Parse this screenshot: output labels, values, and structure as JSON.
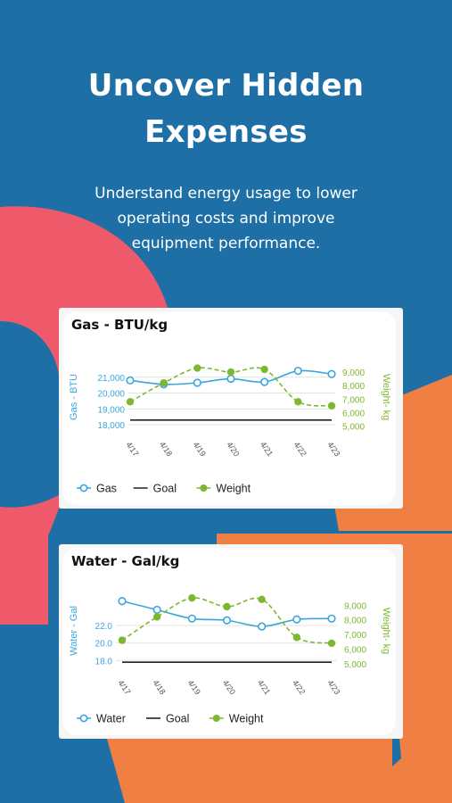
{
  "header": {
    "title_line1": "Uncover Hidden",
    "title_line2": "Expenses",
    "subtitle_line1": "Understand energy usage to lower",
    "subtitle_line2": "operating costs and improve",
    "subtitle_line3": "equipment performance."
  },
  "colors": {
    "background": "#1e6fa6",
    "accent_red": "#ef5a6b",
    "accent_orange": "#ef7f43",
    "series_primary": "#3aa6dd",
    "series_weight": "#7cb82f",
    "goal": "#222222"
  },
  "chart_data": [
    {
      "type": "line",
      "title": "Gas - BTU/kg",
      "categories": [
        "4/17",
        "4/18",
        "4/19",
        "4/20",
        "4/21",
        "4/22",
        "4/23"
      ],
      "series": [
        {
          "name": "Gas",
          "axis": "left",
          "values": [
            20800,
            20550,
            20650,
            20900,
            20700,
            21400,
            21200
          ]
        },
        {
          "name": "Goal",
          "axis": "left",
          "values": [
            18300,
            18300,
            18300,
            18300,
            18300,
            18300,
            18300
          ]
        },
        {
          "name": "Weight",
          "axis": "right",
          "values": [
            6800,
            8200,
            9300,
            9000,
            9200,
            6800,
            6500
          ]
        }
      ],
      "ylabel": "Gas - BTU",
      "y2label": "Weight- kg",
      "ylim": [
        17500,
        22000
      ],
      "y2lim": [
        4500,
        9800
      ],
      "yticks": [
        18000,
        19000,
        20000,
        21000
      ],
      "ytick_labels": [
        "18,000",
        "19,000",
        "20,000",
        "21,000"
      ],
      "y2ticks": [
        5000,
        6000,
        7000,
        8000,
        9000
      ],
      "y2tick_labels": [
        "5,000",
        "6,000",
        "7,000",
        "8,000",
        "9,000"
      ],
      "legend": [
        "Gas",
        "Goal",
        "Weight"
      ],
      "legend_position": "bottom-left",
      "grid": true
    },
    {
      "type": "line",
      "title": "Water - Gal/kg",
      "categories": [
        "4/17",
        "4/18",
        "4/19",
        "4/20",
        "4/21",
        "4/22",
        "4/23"
      ],
      "series": [
        {
          "name": "Water",
          "axis": "left",
          "values": [
            24.8,
            23.8,
            22.8,
            22.6,
            21.9,
            22.7,
            22.8
          ]
        },
        {
          "name": "Goal",
          "axis": "left",
          "values": [
            17.8,
            17.8,
            17.8,
            17.8,
            17.8,
            17.8,
            17.8
          ]
        },
        {
          "name": "Weight",
          "axis": "right",
          "values": [
            6600,
            8200,
            9500,
            8900,
            9400,
            6800,
            6400
          ]
        }
      ],
      "ylabel": "Water - Gal",
      "y2label": "Weight- kg",
      "ylim": [
        16.8,
        26.0
      ],
      "y2lim": [
        4500,
        10000
      ],
      "yticks": [
        18.0,
        20.0,
        22.0
      ],
      "ytick_labels": [
        "18.0",
        "20.0",
        "22.0"
      ],
      "y2ticks": [
        5000,
        6000,
        7000,
        8000,
        9000
      ],
      "y2tick_labels": [
        "5,000",
        "6,000",
        "7,000",
        "8,000",
        "9,000"
      ],
      "legend": [
        "Water",
        "Goal",
        "Weight"
      ],
      "legend_position": "bottom-left",
      "grid": true
    }
  ]
}
